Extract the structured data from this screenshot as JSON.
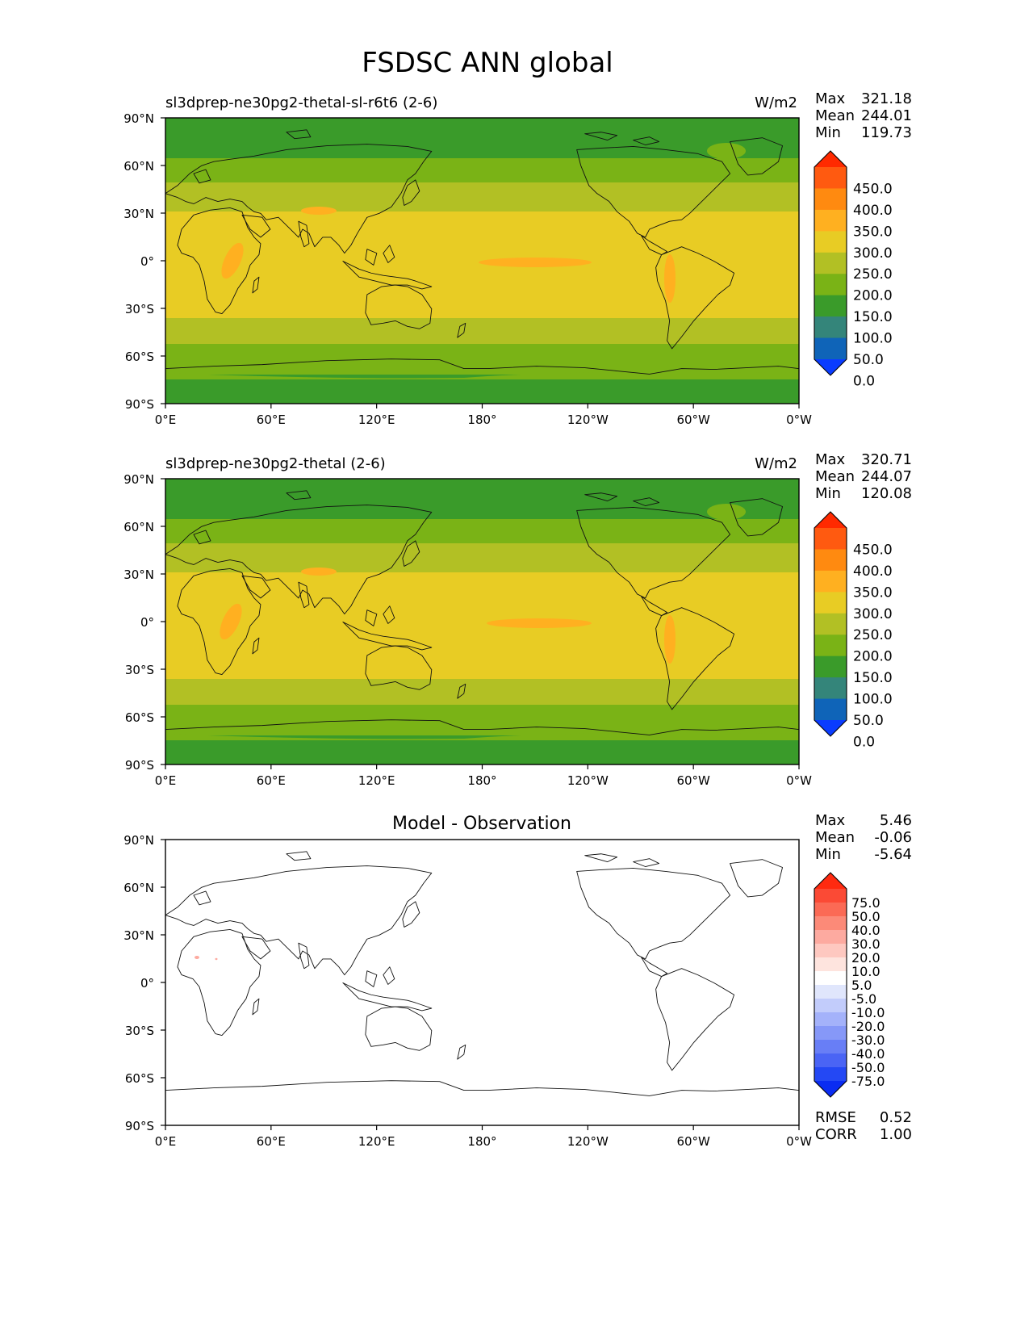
{
  "title": "FSDSC ANN global",
  "lon_ticks": [
    "0°E",
    "60°E",
    "120°E",
    "180°",
    "120°W",
    "60°W",
    "0°W"
  ],
  "lat_ticks": [
    "90°N",
    "60°N",
    "30°N",
    "0°",
    "30°S",
    "60°S",
    "90°S"
  ],
  "panels": [
    {
      "name": "test",
      "left_title": "sl3dprep-ne30pg2-thetal-sl-r6t6 (2-6)",
      "center_title": "",
      "units": "W/m2",
      "stats": {
        "max_label": "Max",
        "max": "321.18",
        "mean_label": "Mean",
        "mean": "244.01",
        "min_label": "Min",
        "min": "119.73"
      },
      "colorbar": {
        "labels": [
          "450.0",
          "400.0",
          "350.0",
          "300.0",
          "250.0",
          "200.0",
          "150.0",
          "100.0",
          "50.0",
          "0.0"
        ],
        "colors": [
          "#ff2a00",
          "#ff5a10",
          "#ff8a10",
          "#ffb020",
          "#e8cc24",
          "#b2c024",
          "#7ab316",
          "#3a9b2a",
          "#34857a",
          "#0f64b8",
          "#0a3cff"
        ]
      },
      "fill_levels": {
        "polar": "#3a9b2a",
        "subpolar": "#7ab316",
        "midlat": "#b2c024",
        "tropics": "#e8cc24",
        "hotspot": "#ffb020"
      }
    },
    {
      "name": "reference",
      "left_title": "sl3dprep-ne30pg2-thetal (2-6)",
      "center_title": "",
      "units": "W/m2",
      "stats": {
        "max_label": "Max",
        "max": "320.71",
        "mean_label": "Mean",
        "mean": "244.07",
        "min_label": "Min",
        "min": "120.08"
      },
      "colorbar": {
        "labels": [
          "450.0",
          "400.0",
          "350.0",
          "300.0",
          "250.0",
          "200.0",
          "150.0",
          "100.0",
          "50.0",
          "0.0"
        ],
        "colors": [
          "#ff2a00",
          "#ff5a10",
          "#ff8a10",
          "#ffb020",
          "#e8cc24",
          "#b2c024",
          "#7ab316",
          "#3a9b2a",
          "#34857a",
          "#0f64b8",
          "#0a3cff"
        ]
      },
      "fill_levels": {
        "polar": "#3a9b2a",
        "subpolar": "#7ab316",
        "midlat": "#b2c024",
        "tropics": "#e8cc24",
        "hotspot": "#ffb020"
      }
    },
    {
      "name": "difference",
      "left_title": "",
      "center_title": "Model - Observation",
      "units": "",
      "stats": {
        "max_label": "Max",
        "max": "5.46",
        "mean_label": "Mean",
        "mean": "-0.06",
        "min_label": "Min",
        "min": "-5.64"
      },
      "colorbar": {
        "labels": [
          "75.0",
          "50.0",
          "40.0",
          "30.0",
          "20.0",
          "10.0",
          "5.0",
          "-5.0",
          "-10.0",
          "-20.0",
          "-30.0",
          "-40.0",
          "-50.0",
          "-75.0"
        ],
        "colors": [
          "#ff2a10",
          "#fb4a35",
          "#fb6a55",
          "#fc8a78",
          "#fdaaa0",
          "#fec8c0",
          "#fee4de",
          "#ffffff",
          "#e0e6fc",
          "#c2ccfb",
          "#a4b2fa",
          "#8698f8",
          "#687ef6",
          "#4a64f5",
          "#2448f4",
          "#0a2cf2"
        ]
      },
      "footer_stats": {
        "rmse_label": "RMSE",
        "rmse": "0.52",
        "corr_label": "CORR",
        "corr": "1.00"
      }
    }
  ]
}
